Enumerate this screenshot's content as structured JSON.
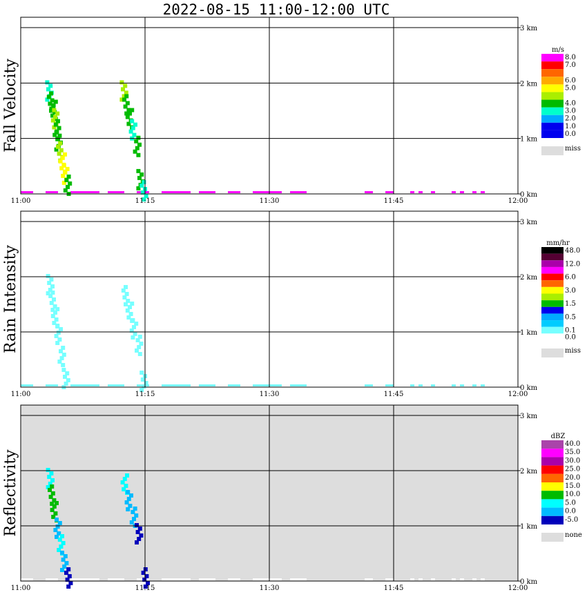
{
  "title": "2022-08-15   11:00-12:00 UTC",
  "chart_data": [
    {
      "type": "heatmap",
      "ylabel": "Fall Velocity",
      "x_ticks": [
        "11:00",
        "11:15",
        "11:30",
        "11:45",
        "12:00"
      ],
      "y_ticks": [
        "0 km",
        "1 km",
        "2 km",
        "3 km"
      ],
      "xlim": [
        0,
        60
      ],
      "ylim": [
        0,
        3
      ],
      "grid": true,
      "background": "#ffffff",
      "legend": {
        "unit": "m/s",
        "levels": [
          {
            "label": "8.0",
            "color": "#ff00ff"
          },
          {
            "label": "7.0",
            "color": "#ff0000"
          },
          {
            "label": "",
            "color": "#ff6600"
          },
          {
            "label": "6.0",
            "color": "#ffaa00"
          },
          {
            "label": "5.0",
            "color": "#ffff00"
          },
          {
            "label": "",
            "color": "#aaee00"
          },
          {
            "label": "4.0",
            "color": "#00bb00"
          },
          {
            "label": "3.0",
            "color": "#00ffcc"
          },
          {
            "label": "2.0",
            "color": "#00aaff"
          },
          {
            "label": "1.0",
            "color": "#0000ee"
          },
          {
            "label": "0.0",
            "color": "#0000ee"
          }
        ],
        "miss_label": "miss",
        "miss_color": "#dddddd"
      },
      "cells": [
        {
          "t": 3.2,
          "h": 1.9,
          "c": "#00ffcc"
        },
        {
          "t": 3.4,
          "h": 1.7,
          "c": "#00bb00"
        },
        {
          "t": 3.7,
          "h": 1.55,
          "c": "#00bb00"
        },
        {
          "t": 3.9,
          "h": 1.4,
          "c": "#aaee00"
        },
        {
          "t": 4.1,
          "h": 1.2,
          "c": "#00bb00"
        },
        {
          "t": 4.3,
          "h": 1.0,
          "c": "#00bb00"
        },
        {
          "t": 4.5,
          "h": 0.8,
          "c": "#aaee00"
        },
        {
          "t": 4.8,
          "h": 0.6,
          "c": "#ffff00"
        },
        {
          "t": 5.1,
          "h": 0.4,
          "c": "#ffff00"
        },
        {
          "t": 5.4,
          "h": 0.2,
          "c": "#00bb00"
        },
        {
          "t": 12.2,
          "h": 1.9,
          "c": "#aaee00"
        },
        {
          "t": 12.5,
          "h": 1.65,
          "c": "#00bb00"
        },
        {
          "t": 12.9,
          "h": 1.4,
          "c": "#00bb00"
        },
        {
          "t": 13.3,
          "h": 1.2,
          "c": "#00ffcc"
        },
        {
          "t": 13.8,
          "h": 0.9,
          "c": "#00bb00"
        },
        {
          "t": 14.2,
          "h": 0.3,
          "c": "#00bb00"
        },
        {
          "t": 14.6,
          "h": 0.1,
          "c": "#00ffcc"
        }
      ],
      "surface_color": "#ff00ff"
    },
    {
      "type": "heatmap",
      "ylabel": "Rain Intensity",
      "x_ticks": [
        "11:00",
        "11:15",
        "11:30",
        "11:45",
        "12:00"
      ],
      "y_ticks": [
        "0 km",
        "1 km",
        "2 km",
        "3 km"
      ],
      "xlim": [
        0,
        60
      ],
      "ylim": [
        0,
        3
      ],
      "grid": true,
      "background": "#ffffff",
      "legend": {
        "unit": "mm/hr",
        "levels": [
          {
            "label": "48.0",
            "color": "#000000"
          },
          {
            "label": "",
            "color": "#550033"
          },
          {
            "label": "12.0",
            "color": "#aa00aa"
          },
          {
            "label": "",
            "color": "#ff00ff"
          },
          {
            "label": "6.0",
            "color": "#ff0000"
          },
          {
            "label": "",
            "color": "#ff6600"
          },
          {
            "label": "3.0",
            "color": "#ffff00"
          },
          {
            "label": "",
            "color": "#aaee00"
          },
          {
            "label": "1.5",
            "color": "#00bb00"
          },
          {
            "label": "",
            "color": "#0000ee"
          },
          {
            "label": "0.5",
            "color": "#00aaff"
          },
          {
            "label": "",
            "color": "#00ccff"
          },
          {
            "label": "0.1",
            "color": "#77ffff"
          },
          {
            "label": "0.0",
            "color": "#ffffff"
          }
        ],
        "miss_label": "miss",
        "miss_color": "#dddddd"
      },
      "cells": [
        {
          "t": 3.3,
          "h": 1.9,
          "c": "#77ffff"
        },
        {
          "t": 3.6,
          "h": 1.6,
          "c": "#77ffff"
        },
        {
          "t": 3.9,
          "h": 1.3,
          "c": "#77ffff"
        },
        {
          "t": 4.3,
          "h": 1.0,
          "c": "#77ffff"
        },
        {
          "t": 4.7,
          "h": 0.6,
          "c": "#77ffff"
        },
        {
          "t": 5.2,
          "h": 0.2,
          "c": "#77ffff"
        },
        {
          "t": 12.4,
          "h": 1.7,
          "c": "#77ffff"
        },
        {
          "t": 12.9,
          "h": 1.4,
          "c": "#77ffff"
        },
        {
          "t": 13.4,
          "h": 1.1,
          "c": "#77ffff"
        },
        {
          "t": 14.0,
          "h": 0.8,
          "c": "#77ffff"
        },
        {
          "t": 14.6,
          "h": 0.15,
          "c": "#77ffff"
        }
      ],
      "surface_color": "#77ffff"
    },
    {
      "type": "heatmap",
      "ylabel": "Reflectivity",
      "x_ticks": [
        "11:00",
        "11:15",
        "11:30",
        "11:45",
        "12:00"
      ],
      "y_ticks": [
        "0 km",
        "1 km",
        "2 km",
        "3 km"
      ],
      "xlim": [
        0,
        60
      ],
      "ylim": [
        0,
        3
      ],
      "grid": true,
      "background": "#dddddd",
      "legend": {
        "unit": "dBZ",
        "levels": [
          {
            "label": "40.0",
            "color": "#aa44aa"
          },
          {
            "label": "35.0",
            "color": "#ff00ff"
          },
          {
            "label": "30.0",
            "color": "#aa00aa"
          },
          {
            "label": "25.0",
            "color": "#ff0000"
          },
          {
            "label": "20.0",
            "color": "#ff6600"
          },
          {
            "label": "15.0",
            "color": "#ffff00"
          },
          {
            "label": "10.0",
            "color": "#00bb00"
          },
          {
            "label": "5.0",
            "color": "#00ffff"
          },
          {
            "label": "0.0",
            "color": "#00bbff"
          },
          {
            "label": "-5.0",
            "color": "#0000bb"
          }
        ],
        "miss_label": "none",
        "miss_color": "#dddddd"
      },
      "cells": [
        {
          "t": 3.3,
          "h": 1.9,
          "c": "#00ffff"
        },
        {
          "t": 3.5,
          "h": 1.6,
          "c": "#00bb00"
        },
        {
          "t": 3.8,
          "h": 1.3,
          "c": "#00bb00"
        },
        {
          "t": 4.2,
          "h": 1.0,
          "c": "#00bbff"
        },
        {
          "t": 4.6,
          "h": 0.7,
          "c": "#00ffff"
        },
        {
          "t": 5.0,
          "h": 0.4,
          "c": "#00bbff"
        },
        {
          "t": 5.5,
          "h": 0.1,
          "c": "#0000bb"
        },
        {
          "t": 12.3,
          "h": 1.8,
          "c": "#00ffff"
        },
        {
          "t": 12.8,
          "h": 1.5,
          "c": "#00bbff"
        },
        {
          "t": 13.4,
          "h": 1.2,
          "c": "#00bbff"
        },
        {
          "t": 14.0,
          "h": 0.9,
          "c": "#0000bb"
        },
        {
          "t": 14.8,
          "h": 0.1,
          "c": "#0000bb"
        }
      ],
      "surface_color": "#ffffff"
    }
  ]
}
